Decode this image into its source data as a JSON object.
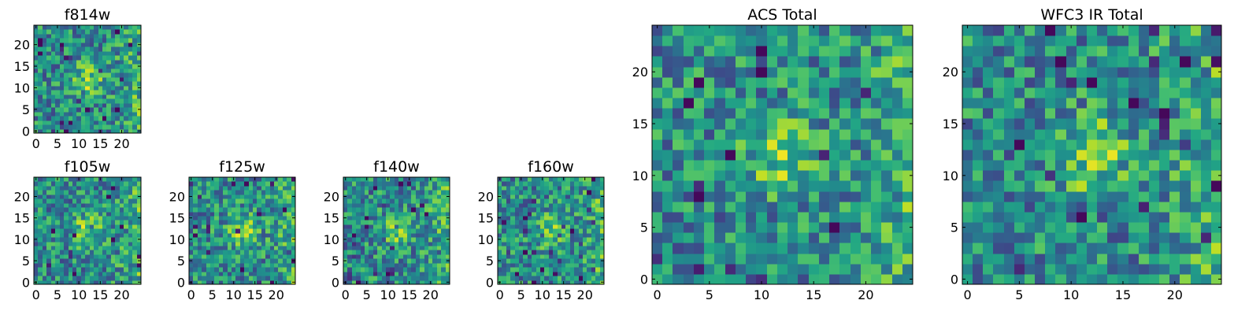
{
  "chart_data": [
    {
      "type": "heatmap",
      "title": "f814w",
      "size": 25,
      "seed": 11,
      "colormap": "viridis",
      "xticks": [
        0,
        5,
        10,
        15,
        20
      ],
      "yticks": [
        0,
        5,
        10,
        15,
        20
      ],
      "xlim": [
        0,
        25
      ],
      "ylim": [
        0,
        25
      ]
    },
    {
      "type": "heatmap",
      "title": "f105w",
      "size": 25,
      "seed": 23,
      "colormap": "viridis",
      "xticks": [
        0,
        5,
        10,
        15,
        20
      ],
      "yticks": [
        0,
        5,
        10,
        15,
        20
      ],
      "xlim": [
        0,
        25
      ],
      "ylim": [
        0,
        25
      ]
    },
    {
      "type": "heatmap",
      "title": "f125w",
      "size": 25,
      "seed": 37,
      "colormap": "viridis",
      "xticks": [
        0,
        5,
        10,
        15,
        20
      ],
      "yticks": [
        0,
        5,
        10,
        15,
        20
      ],
      "xlim": [
        0,
        25
      ],
      "ylim": [
        0,
        25
      ]
    },
    {
      "type": "heatmap",
      "title": "f140w",
      "size": 25,
      "seed": 41,
      "colormap": "viridis",
      "xticks": [
        0,
        5,
        10,
        15,
        20
      ],
      "yticks": [
        0,
        5,
        10,
        15,
        20
      ],
      "xlim": [
        0,
        25
      ],
      "ylim": [
        0,
        25
      ]
    },
    {
      "type": "heatmap",
      "title": "f160w",
      "size": 25,
      "seed": 53,
      "colormap": "viridis",
      "xticks": [
        0,
        5,
        10,
        15,
        20
      ],
      "yticks": [
        0,
        5,
        10,
        15,
        20
      ],
      "xlim": [
        0,
        25
      ],
      "ylim": [
        0,
        25
      ]
    },
    {
      "type": "heatmap",
      "title": "ACS Total",
      "size": 25,
      "seed": 67,
      "colormap": "viridis",
      "xticks": [
        0,
        5,
        10,
        15,
        20
      ],
      "yticks": [
        0,
        5,
        10,
        15,
        20
      ],
      "xlim": [
        0,
        25
      ],
      "ylim": [
        0,
        25
      ]
    },
    {
      "type": "heatmap",
      "title": "WFC3 IR Total",
      "size": 25,
      "seed": 79,
      "colormap": "viridis",
      "xticks": [
        0,
        5,
        10,
        15,
        20
      ],
      "yticks": [
        0,
        5,
        10,
        15,
        20
      ],
      "xlim": [
        0,
        25
      ],
      "ylim": [
        0,
        25
      ]
    }
  ]
}
